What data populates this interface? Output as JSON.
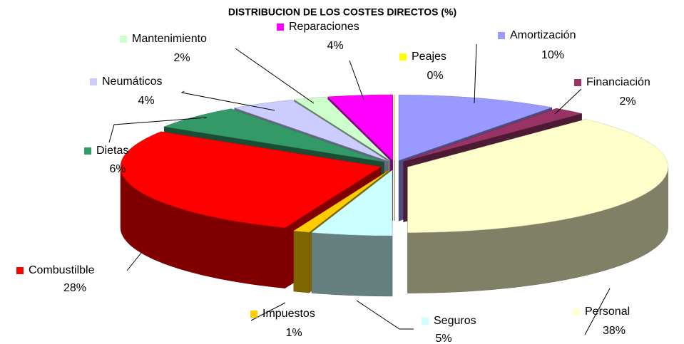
{
  "chart_data": {
    "type": "pie3d",
    "title": "DISTRIBUCION DE LOS COSTES DIRECTOS (%)",
    "categories": [
      "Amortización",
      "Financiación",
      "Personal",
      "Seguros",
      "Impuestos",
      "Combustilble",
      "Dietas",
      "Neumáticos",
      "Mantenimiento",
      "Reparaciones",
      "Peajes"
    ],
    "values": [
      10,
      2,
      38,
      5,
      1,
      28,
      6,
      4,
      2,
      4,
      0
    ],
    "value_labels": [
      "10%",
      "2%",
      "38%",
      "5%",
      "1%",
      "28%",
      "6%",
      "4%",
      "2%",
      "4%",
      "0%"
    ],
    "colors": [
      "#9999ff",
      "#993366",
      "#ffffcc",
      "#ccffff",
      "#ffcc00",
      "#ff0000",
      "#339966",
      "#ccccff",
      "#ccffcc",
      "#ff00ff",
      "#ffff00"
    ]
  }
}
